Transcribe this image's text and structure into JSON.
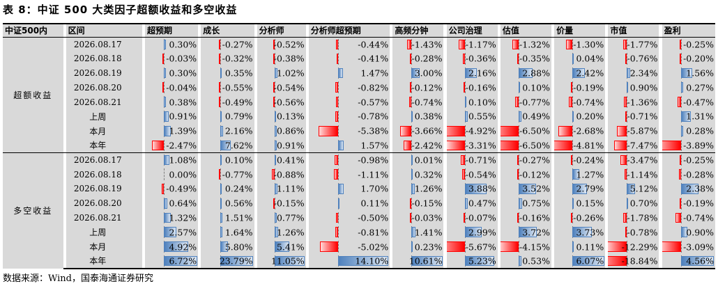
{
  "title": "表 8：中证 500 大类因子超额收益和多空收益",
  "source": "数据来源：Wind，国泰海通证券研究",
  "colors": {
    "positive": "#4f81bd",
    "negative": "#ff0000",
    "cell_bg": "#d9d9d9"
  },
  "headers": [
    "中证500内",
    "区间",
    "超预期",
    "成长",
    "分析师",
    "分析师超预期",
    "高频分钟",
    "公司治理",
    "估值",
    "价量",
    "市值",
    "盈利"
  ],
  "groups": [
    {
      "label": "超额收益",
      "rows": [
        {
          "period": "2026.08.17",
          "cells": [
            {
              "v": 0.3,
              "t": "0.30%"
            },
            {
              "v": -0.27,
              "t": "-0.27%"
            },
            {
              "v": -0.52,
              "t": "-0.52%"
            },
            {
              "v": -0.44,
              "t": "-0.44%"
            },
            {
              "v": -1.43,
              "t": "-1.43%"
            },
            {
              "v": -1.17,
              "t": "-1.17%"
            },
            {
              "v": -1.32,
              "t": "-1.32%"
            },
            {
              "v": -1.3,
              "t": "-1.30%"
            },
            {
              "v": -1.77,
              "t": "-1.77%"
            },
            {
              "v": -0.25,
              "t": "-0.25%"
            }
          ]
        },
        {
          "period": "2026.08.18",
          "cells": [
            {
              "v": -0.03,
              "t": "-0.03%"
            },
            {
              "v": -0.32,
              "t": "-0.32%"
            },
            {
              "v": -0.38,
              "t": "-0.38%"
            },
            {
              "v": -0.41,
              "t": "-0.41%"
            },
            {
              "v": -0.28,
              "t": "-0.28%"
            },
            {
              "v": -0.36,
              "t": "-0.36%"
            },
            {
              "v": -0.35,
              "t": "-0.35%"
            },
            {
              "v": 0.04,
              "t": "0.04%"
            },
            {
              "v": -0.76,
              "t": "-0.76%"
            },
            {
              "v": -0.2,
              "t": "-0.20%"
            }
          ]
        },
        {
          "period": "2026.08.19",
          "cells": [
            {
              "v": 0.3,
              "t": "0.30%"
            },
            {
              "v": 0.35,
              "t": "0.35%"
            },
            {
              "v": 1.02,
              "t": "1.02%"
            },
            {
              "v": 1.47,
              "t": "1.47%"
            },
            {
              "v": 3.0,
              "t": "3.00%"
            },
            {
              "v": 2.16,
              "t": "2.16%"
            },
            {
              "v": 2.88,
              "t": "2.88%"
            },
            {
              "v": 2.42,
              "t": "2.42%"
            },
            {
              "v": 2.34,
              "t": "2.34%"
            },
            {
              "v": 1.56,
              "t": "1.56%"
            }
          ]
        },
        {
          "period": "2026.08.20",
          "cells": [
            {
              "v": -0.04,
              "t": "-0.04%"
            },
            {
              "v": -0.55,
              "t": "-0.55%"
            },
            {
              "v": -0.54,
              "t": "-0.54%"
            },
            {
              "v": -0.82,
              "t": "-0.82%"
            },
            {
              "v": -0.12,
              "t": "-0.12%"
            },
            {
              "v": -0.16,
              "t": "-0.16%"
            },
            {
              "v": 0.1,
              "t": "0.10%"
            },
            {
              "v": -0.19,
              "t": "-0.19%"
            },
            {
              "v": 0.9,
              "t": "0.90%"
            },
            {
              "v": 0.27,
              "t": "0.27%"
            }
          ]
        },
        {
          "period": "2026.08.21",
          "cells": [
            {
              "v": 0.38,
              "t": "0.38%"
            },
            {
              "v": -0.49,
              "t": "-0.49%"
            },
            {
              "v": -0.56,
              "t": "-0.56%"
            },
            {
              "v": -0.57,
              "t": "-0.57%"
            },
            {
              "v": -0.74,
              "t": "-0.74%"
            },
            {
              "v": 0.1,
              "t": "0.10%"
            },
            {
              "v": -0.77,
              "t": "-0.77%"
            },
            {
              "v": -0.74,
              "t": "-0.74%"
            },
            {
              "v": -1.36,
              "t": "-1.36%"
            },
            {
              "v": -0.47,
              "t": "-0.47%"
            }
          ]
        },
        {
          "period": "上周",
          "cells": [
            {
              "v": 0.91,
              "t": "0.91%"
            },
            {
              "v": 0.79,
              "t": "0.79%"
            },
            {
              "v": 0.13,
              "t": "0.13%"
            },
            {
              "v": -0.78,
              "t": "-0.78%"
            },
            {
              "v": 0.38,
              "t": "0.38%"
            },
            {
              "v": 0.55,
              "t": "0.55%"
            },
            {
              "v": 0.49,
              "t": "0.49%"
            },
            {
              "v": 0.2,
              "t": "0.20%"
            },
            {
              "v": -0.71,
              "t": "-0.71%"
            },
            {
              "v": 1.31,
              "t": "1.31%"
            }
          ]
        },
        {
          "period": "本月",
          "cells": [
            {
              "v": 1.39,
              "t": "1.39%"
            },
            {
              "v": 2.16,
              "t": "2.16%"
            },
            {
              "v": 0.86,
              "t": "0.86%"
            },
            {
              "v": -5.38,
              "t": "-5.38%"
            },
            {
              "v": -3.66,
              "t": "-3.66%"
            },
            {
              "v": -4.92,
              "t": "-4.92%"
            },
            {
              "v": -6.5,
              "t": "-6.50%"
            },
            {
              "v": -2.68,
              "t": "-2.68%"
            },
            {
              "v": -5.87,
              "t": "-5.87%"
            },
            {
              "v": 0.28,
              "t": "0.28%"
            }
          ]
        },
        {
          "period": "本年",
          "cells": [
            {
              "v": -2.47,
              "t": "-2.47%"
            },
            {
              "v": 7.62,
              "t": "7.62%"
            },
            {
              "v": 0.91,
              "t": "0.91%"
            },
            {
              "v": 1.57,
              "t": "1.57%"
            },
            {
              "v": -2.42,
              "t": "-2.42%"
            },
            {
              "v": -3.31,
              "t": "-3.31%"
            },
            {
              "v": -6.5,
              "t": "-6.50%"
            },
            {
              "v": -4.81,
              "t": "-4.81%"
            },
            {
              "v": -7.47,
              "t": "-7.47%"
            },
            {
              "v": -3.89,
              "t": "-3.89%"
            }
          ]
        }
      ]
    },
    {
      "label": "多空收益",
      "rows": [
        {
          "period": "2026.08.17",
          "cells": [
            {
              "v": 1.08,
              "t": "1.08%"
            },
            {
              "v": 0.1,
              "t": "0.10%"
            },
            {
              "v": 0.41,
              "t": "0.41%"
            },
            {
              "v": -0.98,
              "t": "-0.98%"
            },
            {
              "v": 0.01,
              "t": "0.01%"
            },
            {
              "v": -0.71,
              "t": "-0.71%"
            },
            {
              "v": -0.27,
              "t": "-0.27%"
            },
            {
              "v": -0.24,
              "t": "-0.24%"
            },
            {
              "v": -3.47,
              "t": "-3.47%"
            },
            {
              "v": -0.25,
              "t": "-0.25%"
            }
          ]
        },
        {
          "period": "2026.08.18",
          "cells": [
            {
              "v": 0.0,
              "t": "0.00%"
            },
            {
              "v": -0.77,
              "t": "-0.77%"
            },
            {
              "v": -0.88,
              "t": "-0.88%"
            },
            {
              "v": -1.11,
              "t": "-1.11%"
            },
            {
              "v": 0.32,
              "t": "0.32%"
            },
            {
              "v": -0.54,
              "t": "-0.54%"
            },
            {
              "v": -0.12,
              "t": "-0.12%"
            },
            {
              "v": 1.27,
              "t": "1.27%"
            },
            {
              "v": -1.14,
              "t": "-1.14%"
            },
            {
              "v": -0.28,
              "t": "-0.28%"
            }
          ]
        },
        {
          "period": "2026.08.19",
          "cells": [
            {
              "v": -0.49,
              "t": "-0.49%"
            },
            {
              "v": 0.24,
              "t": "0.24%"
            },
            {
              "v": 1.11,
              "t": "1.11%"
            },
            {
              "v": 1.7,
              "t": "1.70%"
            },
            {
              "v": 1.26,
              "t": "1.26%"
            },
            {
              "v": 3.88,
              "t": "3.88%"
            },
            {
              "v": 3.52,
              "t": "3.52%"
            },
            {
              "v": 2.79,
              "t": "2.79%"
            },
            {
              "v": 5.12,
              "t": "5.12%"
            },
            {
              "v": 2.38,
              "t": "2.38%"
            }
          ]
        },
        {
          "period": "2026.08.20",
          "cells": [
            {
              "v": 0.64,
              "t": "0.64%"
            },
            {
              "v": 0.56,
              "t": "0.56%"
            },
            {
              "v": -0.15,
              "t": "-0.15%"
            },
            {
              "v": 0.11,
              "t": "0.11%"
            },
            {
              "v": -0.15,
              "t": "-0.15%"
            },
            {
              "v": 0.47,
              "t": "0.47%"
            },
            {
              "v": 0.75,
              "t": "0.75%"
            },
            {
              "v": 0.15,
              "t": "0.15%"
            },
            {
              "v": 0.7,
              "t": "0.70%"
            },
            {
              "v": -0.19,
              "t": "-0.19%"
            }
          ]
        },
        {
          "period": "2026.08.21",
          "cells": [
            {
              "v": 1.32,
              "t": "1.32%"
            },
            {
              "v": 1.51,
              "t": "1.51%"
            },
            {
              "v": 0.77,
              "t": "0.77%"
            },
            {
              "v": -0.5,
              "t": "-0.50%"
            },
            {
              "v": -0.03,
              "t": "-0.03%"
            },
            {
              "v": -0.07,
              "t": "-0.07%"
            },
            {
              "v": -0.16,
              "t": "-0.16%"
            },
            {
              "v": -0.26,
              "t": "-0.26%"
            },
            {
              "v": -1.78,
              "t": "-1.78%"
            },
            {
              "v": -0.74,
              "t": "-0.74%"
            }
          ]
        },
        {
          "period": "上周",
          "cells": [
            {
              "v": 2.57,
              "t": "2.57%"
            },
            {
              "v": 1.64,
              "t": "1.64%"
            },
            {
              "v": 1.26,
              "t": "1.26%"
            },
            {
              "v": -0.81,
              "t": "-0.81%"
            },
            {
              "v": 1.41,
              "t": "1.41%"
            },
            {
              "v": 2.99,
              "t": "2.99%"
            },
            {
              "v": 3.72,
              "t": "3.72%"
            },
            {
              "v": 3.73,
              "t": "3.73%"
            },
            {
              "v": -0.78,
              "t": "-0.78%"
            },
            {
              "v": 0.9,
              "t": "0.90%"
            }
          ]
        },
        {
          "period": "本月",
          "cells": [
            {
              "v": 4.92,
              "t": "4.92%"
            },
            {
              "v": 5.8,
              "t": "5.80%"
            },
            {
              "v": 5.41,
              "t": "5.41%"
            },
            {
              "v": -5.02,
              "t": "-5.02%"
            },
            {
              "v": 0.23,
              "t": "0.23%"
            },
            {
              "v": -5.67,
              "t": "-5.67%"
            },
            {
              "v": -4.15,
              "t": "-4.15%"
            },
            {
              "v": 0.11,
              "t": "0.11%"
            },
            {
              "v": -12.29,
              "t": "-12.29%"
            },
            {
              "v": -3.09,
              "t": "-3.09%"
            }
          ]
        },
        {
          "period": "本年",
          "cells": [
            {
              "v": 6.72,
              "t": "6.72%"
            },
            {
              "v": 23.79,
              "t": "23.79%"
            },
            {
              "v": 11.05,
              "t": "11.05%"
            },
            {
              "v": 14.1,
              "t": "14.10%"
            },
            {
              "v": 10.61,
              "t": "10.61%"
            },
            {
              "v": 5.23,
              "t": "5.23%"
            },
            {
              "v": 0.53,
              "t": "0.53%"
            },
            {
              "v": 6.07,
              "t": "6.07%"
            },
            {
              "v": -18.84,
              "t": "-18.84%"
            },
            {
              "v": 4.56,
              "t": "4.56%"
            }
          ]
        }
      ]
    }
  ]
}
